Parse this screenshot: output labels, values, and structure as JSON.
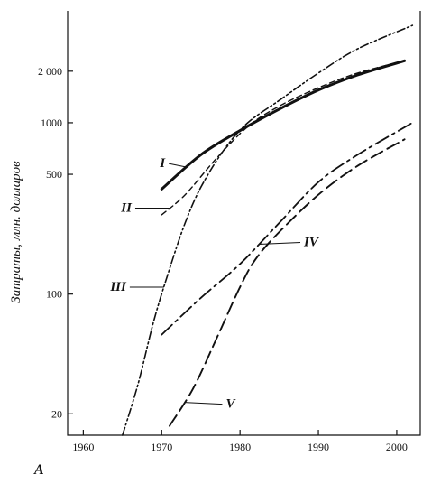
{
  "chart_data": {
    "type": "line",
    "title": "",
    "xlabel": "",
    "ylabel": "Затраты, млн. долларов",
    "y_scale": "log",
    "xlim": [
      1958,
      2003
    ],
    "ylim": [
      15,
      4500
    ],
    "x_ticks": [
      "1960",
      "1970",
      "1980",
      "1990",
      "2000"
    ],
    "y_ticks": [
      "20",
      "100",
      "500",
      "1000",
      "2 000"
    ],
    "panel_label": "A",
    "grid": false,
    "series": [
      {
        "name": "I",
        "style": "solid-thick",
        "x": [
          1970,
          1975,
          1980,
          1985,
          1990,
          1995,
          2001
        ],
        "y": [
          410,
          650,
          900,
          1200,
          1550,
          1900,
          2300
        ]
      },
      {
        "name": "II",
        "style": "dashed",
        "x": [
          1970,
          1973,
          1977,
          1981,
          1985,
          1990,
          1995,
          2001
        ],
        "y": [
          290,
          380,
          620,
          950,
          1250,
          1600,
          1950,
          2300
        ]
      },
      {
        "name": "III",
        "style": "dash-dot-dot",
        "x": [
          1965,
          1967,
          1969,
          1971,
          1973,
          1975,
          1978,
          1981,
          1985,
          1990,
          1995,
          2002
        ],
        "y": [
          15,
          30,
          70,
          140,
          260,
          420,
          700,
          1000,
          1350,
          1950,
          2700,
          3700
        ]
      },
      {
        "name": "IV",
        "style": "long-dash-dot",
        "x": [
          1970,
          1975,
          1980,
          1985,
          1990,
          1995,
          2002
        ],
        "y": [
          58,
          95,
          150,
          260,
          450,
          650,
          1000
        ]
      },
      {
        "name": "V",
        "style": "long-dash",
        "x": [
          1971,
          1974,
          1977,
          1980,
          1982,
          1985,
          1990,
          1995,
          2001
        ],
        "y": [
          17,
          28,
          55,
          110,
          160,
          230,
          380,
          560,
          800
        ]
      }
    ]
  }
}
